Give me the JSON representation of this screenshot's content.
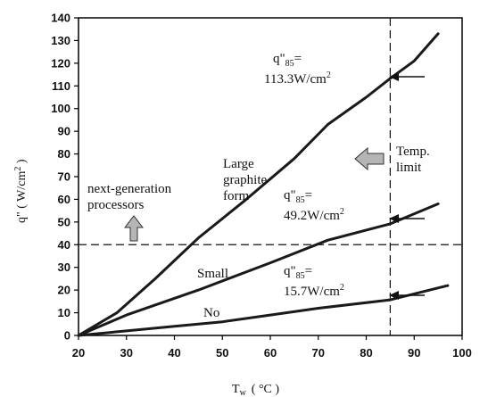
{
  "chart_data": {
    "type": "line",
    "xlabel": "T",
    "xlabel_sub": "w",
    "xlabel_unit": "( °C )",
    "ylabel": "q\" ( W/cm",
    "ylabel_sup": "2",
    "ylabel_close": " )",
    "xlim": [
      20,
      100
    ],
    "ylim": [
      0,
      140
    ],
    "x_ticks": [
      "20",
      "30",
      "40",
      "50",
      "60",
      "70",
      "80",
      "90",
      "100"
    ],
    "y_ticks": [
      "0",
      "10",
      "20",
      "30",
      "40",
      "50",
      "60",
      "70",
      "80",
      "90",
      "100",
      "110",
      "120",
      "130",
      "140"
    ],
    "grid": false,
    "series": [
      {
        "name": "Large graphite form",
        "color": "#1a1a1a",
        "points": [
          [
            20,
            0
          ],
          [
            28,
            10
          ],
          [
            36,
            25
          ],
          [
            45,
            43
          ],
          [
            55,
            60
          ],
          [
            65,
            78
          ],
          [
            72,
            93
          ],
          [
            80,
            105
          ],
          [
            85,
            113.3
          ],
          [
            90,
            121
          ],
          [
            95,
            133
          ]
        ]
      },
      {
        "name": "Small",
        "color": "#1a1a1a",
        "points": [
          [
            20,
            0
          ],
          [
            30,
            9
          ],
          [
            45,
            20
          ],
          [
            60,
            32
          ],
          [
            72,
            42
          ],
          [
            85,
            49.2
          ],
          [
            95,
            58
          ]
        ]
      },
      {
        "name": "No",
        "color": "#1a1a1a",
        "points": [
          [
            20,
            0
          ],
          [
            30,
            2
          ],
          [
            40,
            4
          ],
          [
            50,
            6
          ],
          [
            60,
            9
          ],
          [
            70,
            12
          ],
          [
            85,
            15.7
          ],
          [
            97,
            22
          ]
        ]
      }
    ],
    "reference_lines": [
      {
        "axis": "x",
        "value": 85
      },
      {
        "axis": "y",
        "value": 40
      }
    ]
  },
  "labels": {
    "large": [
      "Large",
      "graphite",
      "form"
    ],
    "small": "Small",
    "no": "No",
    "next_gen": [
      "next-generation",
      "processors"
    ],
    "temp_limit": [
      "Temp.",
      "limit"
    ],
    "q85_prefix": "q\"",
    "q85_sub": "85",
    "q85_eq": "=",
    "q_large": "113.3W/cm",
    "q_small": "49.2W/cm",
    "q_no": "15.7W/cm",
    "sq": "2"
  }
}
